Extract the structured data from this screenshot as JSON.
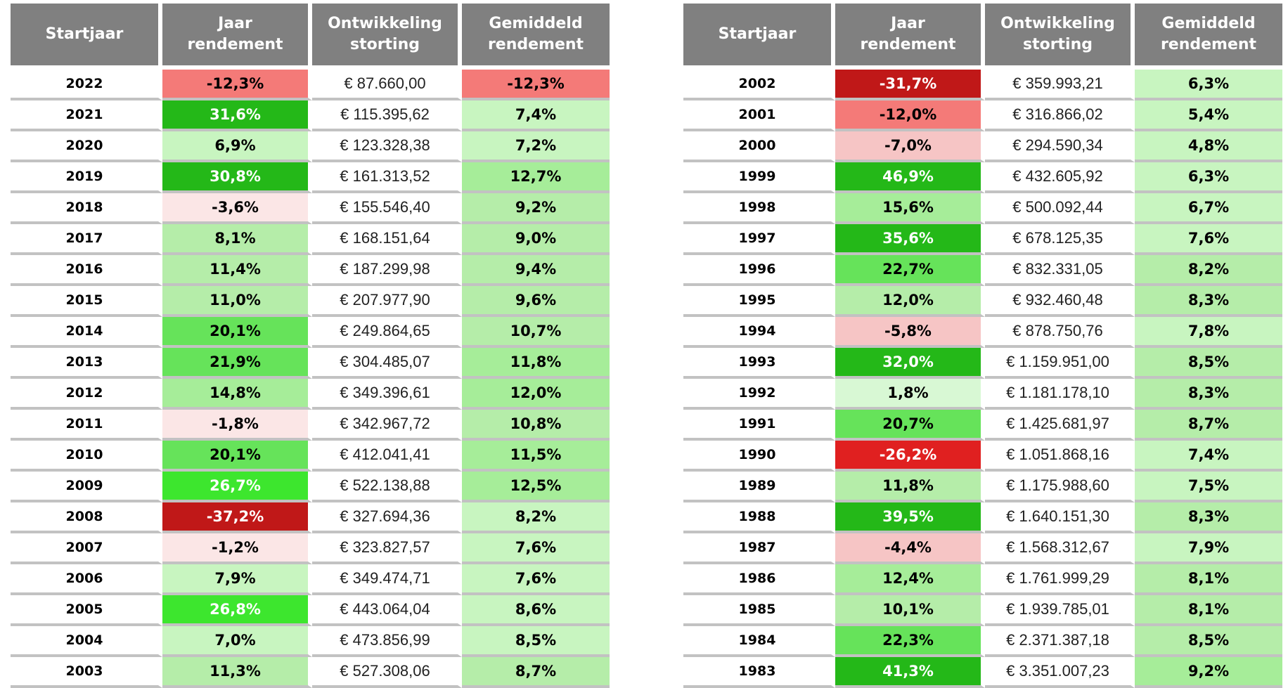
{
  "headers": {
    "startjaar": "Startjaar",
    "jaar_rendement": "Jaar\nrendement",
    "ontwikkeling_storting": "Ontwikkeling\nstorting",
    "gemiddeld_rendement": "Gemiddeld\nrendement"
  },
  "colors": {
    "header_bg": "#808080",
    "dark_red": "#c01818",
    "red": "#e02020",
    "salmon": "#f47a78",
    "pink": "#f6c5c5",
    "light_pink": "#fbe6e6",
    "very_light_green": "#d8f8d4",
    "light_green": "#c8f5c0",
    "pale_green": "#b5eda9",
    "mid_green": "#a6ed99",
    "green": "#66e35a",
    "bright_green": "#3de62e",
    "dark_green": "#24b818"
  },
  "left_rows": [
    {
      "year": "2022",
      "jaar": "-12,3%",
      "ont": "€ 87.660,00",
      "gem": "-12,3%",
      "jaar_bg": "#f47a78",
      "gem_bg": "#f47a78",
      "jaar_white": false
    },
    {
      "year": "2021",
      "jaar": "31,6%",
      "ont": "€ 115.395,62",
      "gem": "7,4%",
      "jaar_bg": "#24b818",
      "gem_bg": "#c8f5c0",
      "jaar_white": true
    },
    {
      "year": "2020",
      "jaar": "6,9%",
      "ont": "€ 123.328,38",
      "gem": "7,2%",
      "jaar_bg": "#c8f5c0",
      "gem_bg": "#c8f5c0",
      "jaar_white": false
    },
    {
      "year": "2019",
      "jaar": "30,8%",
      "ont": "€ 161.313,52",
      "gem": "12,7%",
      "jaar_bg": "#24b818",
      "gem_bg": "#a6ed99",
      "jaar_white": true
    },
    {
      "year": "2018",
      "jaar": "-3,6%",
      "ont": "€ 155.546,40",
      "gem": "9,2%",
      "jaar_bg": "#fbe6e6",
      "gem_bg": "#b5eda9",
      "jaar_white": false
    },
    {
      "year": "2017",
      "jaar": "8,1%",
      "ont": "€ 168.151,64",
      "gem": "9,0%",
      "jaar_bg": "#b5eda9",
      "gem_bg": "#b5eda9",
      "jaar_white": false
    },
    {
      "year": "2016",
      "jaar": "11,4%",
      "ont": "€ 187.299,98",
      "gem": "9,4%",
      "jaar_bg": "#b5eda9",
      "gem_bg": "#b5eda9",
      "jaar_white": false
    },
    {
      "year": "2015",
      "jaar": "11,0%",
      "ont": "€ 207.977,90",
      "gem": "9,6%",
      "jaar_bg": "#b5eda9",
      "gem_bg": "#b5eda9",
      "jaar_white": false
    },
    {
      "year": "2014",
      "jaar": "20,1%",
      "ont": "€ 249.864,65",
      "gem": "10,7%",
      "jaar_bg": "#66e35a",
      "gem_bg": "#b5eda9",
      "jaar_white": false
    },
    {
      "year": "2013",
      "jaar": "21,9%",
      "ont": "€ 304.485,07",
      "gem": "11,8%",
      "jaar_bg": "#66e35a",
      "gem_bg": "#a6ed99",
      "jaar_white": false
    },
    {
      "year": "2012",
      "jaar": "14,8%",
      "ont": "€ 349.396,61",
      "gem": "12,0%",
      "jaar_bg": "#a6ed99",
      "gem_bg": "#a6ed99",
      "jaar_white": false
    },
    {
      "year": "2011",
      "jaar": "-1,8%",
      "ont": "€ 342.967,72",
      "gem": "10,8%",
      "jaar_bg": "#fbe6e6",
      "gem_bg": "#b5eda9",
      "jaar_white": false
    },
    {
      "year": "2010",
      "jaar": "20,1%",
      "ont": "€ 412.041,41",
      "gem": "11,5%",
      "jaar_bg": "#66e35a",
      "gem_bg": "#a6ed99",
      "jaar_white": false
    },
    {
      "year": "2009",
      "jaar": "26,7%",
      "ont": "€ 522.138,88",
      "gem": "12,5%",
      "jaar_bg": "#3de62e",
      "gem_bg": "#a6ed99",
      "jaar_white": true
    },
    {
      "year": "2008",
      "jaar": "-37,2%",
      "ont": "€ 327.694,36",
      "gem": "8,2%",
      "jaar_bg": "#c01818",
      "gem_bg": "#c8f5c0",
      "jaar_white": true
    },
    {
      "year": "2007",
      "jaar": "-1,2%",
      "ont": "€ 323.827,57",
      "gem": "7,6%",
      "jaar_bg": "#fbe6e6",
      "gem_bg": "#c8f5c0",
      "jaar_white": false
    },
    {
      "year": "2006",
      "jaar": "7,9%",
      "ont": "€ 349.474,71",
      "gem": "7,6%",
      "jaar_bg": "#c8f5c0",
      "gem_bg": "#c8f5c0",
      "jaar_white": false
    },
    {
      "year": "2005",
      "jaar": "26,8%",
      "ont": "€ 443.064,04",
      "gem": "8,6%",
      "jaar_bg": "#3de62e",
      "gem_bg": "#c8f5c0",
      "jaar_white": true
    },
    {
      "year": "2004",
      "jaar": "7,0%",
      "ont": "€ 473.856,99",
      "gem": "8,5%",
      "jaar_bg": "#c8f5c0",
      "gem_bg": "#c8f5c0",
      "jaar_white": false
    },
    {
      "year": "2003",
      "jaar": "11,3%",
      "ont": "€ 527.308,06",
      "gem": "8,7%",
      "jaar_bg": "#b5eda9",
      "gem_bg": "#b5eda9",
      "jaar_white": false
    }
  ],
  "right_rows": [
    {
      "year": "2002",
      "jaar": "-31,7%",
      "ont": "€ 359.993,21",
      "gem": "6,3%",
      "jaar_bg": "#c01818",
      "gem_bg": "#c8f5c0",
      "jaar_white": true
    },
    {
      "year": "2001",
      "jaar": "-12,0%",
      "ont": "€ 316.866,02",
      "gem": "5,4%",
      "jaar_bg": "#f47a78",
      "gem_bg": "#c8f5c0",
      "jaar_white": false
    },
    {
      "year": "2000",
      "jaar": "-7,0%",
      "ont": "€ 294.590,34",
      "gem": "4,8%",
      "jaar_bg": "#f6c5c5",
      "gem_bg": "#c8f5c0",
      "jaar_white": false
    },
    {
      "year": "1999",
      "jaar": "46,9%",
      "ont": "€ 432.605,92",
      "gem": "6,3%",
      "jaar_bg": "#24b818",
      "gem_bg": "#c8f5c0",
      "jaar_white": true
    },
    {
      "year": "1998",
      "jaar": "15,6%",
      "ont": "€ 500.092,44",
      "gem": "6,7%",
      "jaar_bg": "#a6ed99",
      "gem_bg": "#c8f5c0",
      "jaar_white": false
    },
    {
      "year": "1997",
      "jaar": "35,6%",
      "ont": "€ 678.125,35",
      "gem": "7,6%",
      "jaar_bg": "#24b818",
      "gem_bg": "#c8f5c0",
      "jaar_white": true
    },
    {
      "year": "1996",
      "jaar": "22,7%",
      "ont": "€ 832.331,05",
      "gem": "8,2%",
      "jaar_bg": "#66e35a",
      "gem_bg": "#b5eda9",
      "jaar_white": false
    },
    {
      "year": "1995",
      "jaar": "12,0%",
      "ont": "€ 932.460,48",
      "gem": "8,3%",
      "jaar_bg": "#b5eda9",
      "gem_bg": "#b5eda9",
      "jaar_white": false
    },
    {
      "year": "1994",
      "jaar": "-5,8%",
      "ont": "€ 878.750,76",
      "gem": "7,8%",
      "jaar_bg": "#f6c5c5",
      "gem_bg": "#c8f5c0",
      "jaar_white": false
    },
    {
      "year": "1993",
      "jaar": "32,0%",
      "ont": "€ 1.159.951,00",
      "gem": "8,5%",
      "jaar_bg": "#24b818",
      "gem_bg": "#b5eda9",
      "jaar_white": true
    },
    {
      "year": "1992",
      "jaar": "1,8%",
      "ont": "€ 1.181.178,10",
      "gem": "8,3%",
      "jaar_bg": "#d8f8d4",
      "gem_bg": "#b5eda9",
      "jaar_white": false
    },
    {
      "year": "1991",
      "jaar": "20,7%",
      "ont": "€ 1.425.681,97",
      "gem": "8,7%",
      "jaar_bg": "#66e35a",
      "gem_bg": "#b5eda9",
      "jaar_white": false
    },
    {
      "year": "1990",
      "jaar": "-26,2%",
      "ont": "€ 1.051.868,16",
      "gem": "7,4%",
      "jaar_bg": "#e02020",
      "gem_bg": "#c8f5c0",
      "jaar_white": true
    },
    {
      "year": "1989",
      "jaar": "11,8%",
      "ont": "€ 1.175.988,60",
      "gem": "7,5%",
      "jaar_bg": "#b5eda9",
      "gem_bg": "#c8f5c0",
      "jaar_white": false
    },
    {
      "year": "1988",
      "jaar": "39,5%",
      "ont": "€ 1.640.151,30",
      "gem": "8,3%",
      "jaar_bg": "#24b818",
      "gem_bg": "#b5eda9",
      "jaar_white": true
    },
    {
      "year": "1987",
      "jaar": "-4,4%",
      "ont": "€ 1.568.312,67",
      "gem": "7,9%",
      "jaar_bg": "#f6c5c5",
      "gem_bg": "#c8f5c0",
      "jaar_white": false
    },
    {
      "year": "1986",
      "jaar": "12,4%",
      "ont": "€ 1.761.999,29",
      "gem": "8,1%",
      "jaar_bg": "#a6ed99",
      "gem_bg": "#b5eda9",
      "jaar_white": false
    },
    {
      "year": "1985",
      "jaar": "10,1%",
      "ont": "€ 1.939.785,01",
      "gem": "8,1%",
      "jaar_bg": "#b5eda9",
      "gem_bg": "#b5eda9",
      "jaar_white": false
    },
    {
      "year": "1984",
      "jaar": "22,3%",
      "ont": "€ 2.371.387,18",
      "gem": "8,5%",
      "jaar_bg": "#66e35a",
      "gem_bg": "#b5eda9",
      "jaar_white": false
    },
    {
      "year": "1983",
      "jaar": "41,3%",
      "ont": "€ 3.351.007,23",
      "gem": "9,2%",
      "jaar_bg": "#24b818",
      "gem_bg": "#a6ed99",
      "jaar_white": true
    }
  ]
}
